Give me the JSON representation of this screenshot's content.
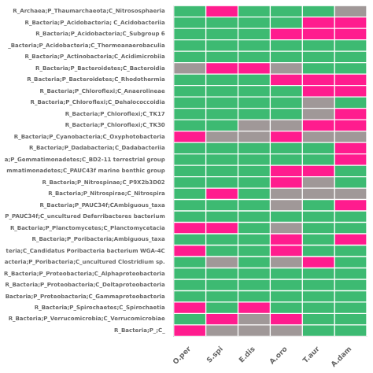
{
  "chart_data": {
    "type": "heatmap",
    "rows": [
      "R_Archaea;P_Thaumarchaeota;C_Nitrososphaeria",
      "R_Bacteria;P_Acidobacteria; C_Acidobacteriia",
      "R_Bacteria;P_Acidobacteria;C_Subgroup 6",
      "_Bacteria;P_Acidobacteria;C_Thermoanaerobaculia",
      "R_Bacteria;P_Actinobacteria;C_Acidimicrobiia",
      "R_Bacteria;P_Bacteroidetes;C_Bacteroidia",
      "R_Bacteria;P_Bacteroidetes;C_Rhodothermia",
      "R_Bacteria;P_Chloroflexi;C_Anaerolineae",
      "R_Bacteria;P_Chloroflexi;C_Dehalococcoidia",
      "R_Bacteria;P_Chloroflexi;C_TK17",
      "R_Bacteria;P_Chloroflexi;C_TK30",
      "R_Bacteria;P_Cyanobacteria;C_Oxyphotobacteria",
      "R_Bacteria;P_Dadabacteria;C_Dadabacteriia",
      "a;P_Gemmatimonadetes;C_BD2-11 terrestrial group",
      "mmatimonadetes;C_PAUC43f marine benthic group",
      "R_Bacteria;P_Nitrospinae;C_P9X2b3D02",
      "R_Bacteria;P_Nitrospirae;C_Nitrospira",
      "R_Bacteria;P_PAUC34f;CAmbiguous_taxa",
      "P_PAUC34f;C_uncultured Deferribacteres bacterium",
      "R_Bacteria;P_Planctomycetes;C_Planctomycetacia",
      "R_Bacteria;P_Poribacteria;Ambiguous_taxa",
      "teria;C_Candidatus Poribacteria bacterium WGA-4C",
      "acteria;P_Poribacteria;C_uncultured Clostridium sp.",
      "R_Bacteria;P_Proteobacteria;C_Alphaproteobacteria",
      "R_Bacteria;P_Proteobacteria;C_Deltaproteobacteria",
      "Bacteria;P_Proteobacteria;C_Gammaproteobacteria",
      "R_Bacteria;P_Spirochaetes;C_Spirochaetia",
      "R_Bacteria;P_Verrucomicrobia;C_Verrucomicrobiae",
      "R_Bacteria;P_;C_"
    ],
    "categories": [
      "O.per",
      "S.spi",
      "E.dis",
      "A.oro",
      "T.aur",
      "A.dam"
    ],
    "values": [
      [
        0,
        2,
        0,
        0,
        0,
        1
      ],
      [
        0,
        0,
        0,
        0,
        2,
        2
      ],
      [
        0,
        0,
        0,
        2,
        2,
        2
      ],
      [
        0,
        0,
        0,
        0,
        0,
        0
      ],
      [
        0,
        0,
        0,
        0,
        0,
        0
      ],
      [
        1,
        2,
        2,
        1,
        0,
        0
      ],
      [
        0,
        0,
        0,
        2,
        2,
        2
      ],
      [
        0,
        0,
        0,
        0,
        2,
        2
      ],
      [
        0,
        0,
        0,
        0,
        1,
        0
      ],
      [
        0,
        0,
        0,
        0,
        1,
        2
      ],
      [
        0,
        0,
        1,
        1,
        2,
        2
      ],
      [
        2,
        1,
        1,
        2,
        1,
        1
      ],
      [
        0,
        0,
        0,
        0,
        0,
        2
      ],
      [
        0,
        0,
        0,
        0,
        0,
        2
      ],
      [
        0,
        0,
        0,
        2,
        2,
        0
      ],
      [
        0,
        0,
        0,
        2,
        1,
        0
      ],
      [
        0,
        2,
        0,
        1,
        1,
        1
      ],
      [
        0,
        0,
        0,
        1,
        0,
        2
      ],
      [
        0,
        0,
        0,
        0,
        0,
        0
      ],
      [
        2,
        2,
        0,
        1,
        0,
        0
      ],
      [
        0,
        0,
        0,
        2,
        0,
        2
      ],
      [
        2,
        0,
        0,
        2,
        0,
        0
      ],
      [
        0,
        1,
        0,
        1,
        2,
        0
      ],
      [
        0,
        0,
        0,
        0,
        0,
        0
      ],
      [
        0,
        0,
        0,
        0,
        0,
        0
      ],
      [
        0,
        0,
        0,
        0,
        0,
        0
      ],
      [
        2,
        0,
        2,
        0,
        0,
        0
      ],
      [
        0,
        2,
        1,
        2,
        0,
        0
      ],
      [
        2,
        1,
        1,
        1,
        0,
        0
      ]
    ],
    "color_range": [
      0,
      2
    ],
    "colors": [
      "#3dba72",
      "#a09898",
      "#ff1c8e"
    ]
  }
}
